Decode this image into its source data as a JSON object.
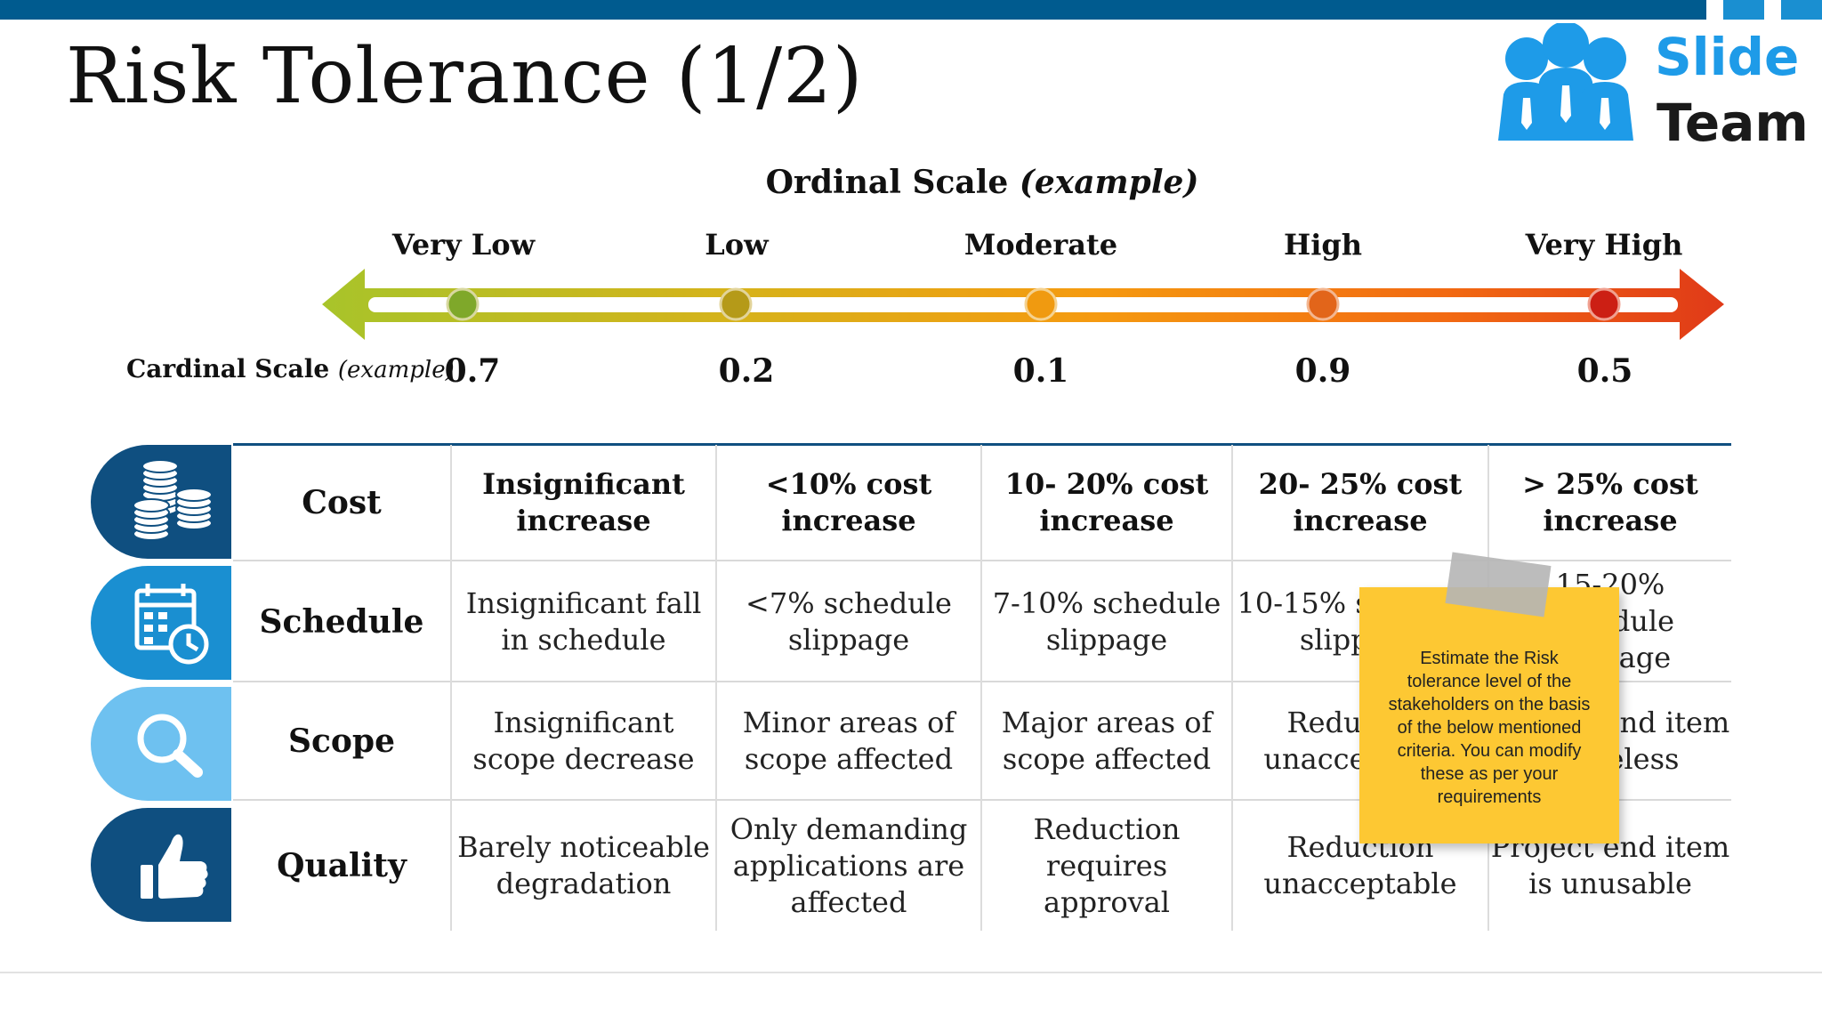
{
  "title": "Risk Tolerance (1/2)",
  "logo": {
    "line1": "Slide",
    "line2": "Team"
  },
  "ordinal": {
    "heading_main": "Ordinal Scale",
    "heading_italic": "(example)",
    "levels": [
      "Very Low",
      "Low",
      "Moderate",
      "High",
      "Very High"
    ]
  },
  "cardinal": {
    "label_main": "Cardinal Scale",
    "label_italic": "(example)",
    "values": [
      "0.7",
      "0.2",
      "0.1",
      "0.9",
      "0.5"
    ]
  },
  "colors": {
    "accent": "#005b8f",
    "cost_tab": "#0f4f80",
    "schedule_tab": "#1a8fd1",
    "scope_tab": "#6ec1f0",
    "quality_tab": "#0f4f80",
    "sticky": "#fdc833"
  },
  "rows": [
    {
      "category": "Cost",
      "icon": "coins-icon",
      "cells": [
        "Insignificant increase",
        "<10% cost increase",
        "10- 20% cost increase",
        "20- 25% cost increase",
        "> 25% cost increase"
      ]
    },
    {
      "category": "Schedule",
      "icon": "calendar-clock-icon",
      "cells": [
        "Insignificant fall in schedule",
        "<7% schedule slippage",
        "7-10% schedule slippage",
        "10-15% schedule slippage",
        "15-20% schedule slippage"
      ]
    },
    {
      "category": "Scope",
      "icon": "magnifier-icon",
      "cells": [
        "Insignificant scope decrease",
        "Minor areas of scope affected",
        "Major areas of scope affected",
        "Reduction unacceptable",
        "Project end item is useless"
      ]
    },
    {
      "category": "Quality",
      "icon": "thumbs-up-icon",
      "cells": [
        "Barely noticeable degradation",
        "Only demanding applications are affected",
        "Reduction requires approval",
        "Reduction unacceptable",
        "Project end item is unusable"
      ]
    }
  ],
  "sticky_note": "Estimate the Risk tolerance level of the stakeholders on the basis of the below mentioned criteria. You can modify these as per your requirements"
}
